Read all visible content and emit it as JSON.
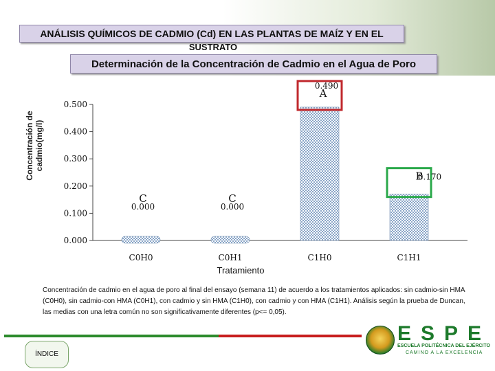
{
  "header": {
    "title_line1": "ANÁLISIS QUÍMICOS DE CADMIO (Cd) EN LAS PLANTAS DE MAÍZ Y EN EL",
    "title_line2": "SUSTRATO"
  },
  "chart_data": {
    "type": "bar",
    "title": "Determinación de la Concentración de Cadmio en el Agua de Poro",
    "xlabel": "Tratamiento",
    "ylabel": "Concentración de cadmio(mg/l)",
    "categories": [
      "C0H0",
      "C0H1",
      "C1H0",
      "C1H1"
    ],
    "values": [
      0.0,
      0.0,
      0.49,
      0.17
    ],
    "value_labels": [
      "0.000",
      "0.000",
      "0.490",
      "0.170"
    ],
    "letters": [
      "C",
      "C",
      "A",
      "B"
    ],
    "yticks": [
      "0.000",
      "0.100",
      "0.200",
      "0.300",
      "0.400",
      "0.500"
    ],
    "ylim": [
      0,
      0.5
    ],
    "highlight_colors": [
      "",
      "",
      "#c0282d",
      "#2aa84a"
    ],
    "bar_color": "#8aa6c8"
  },
  "caption": "Concentración de cadmio en el agua de poro al final del ensayo (semana 11) de acuerdo a los tratamientos aplicados: sin cadmio-sin HMA (C0H0), sin cadmio-con HMA (C0H1), con cadmio y sin HMA (C1H0), con cadmio y con HMA (C1H1). Análisis según la prueba de Duncan, las medias con una letra común no son significativamente diferentes (p<= 0,05).",
  "footer": {
    "index_label": "ÍNDICE",
    "logo_name": "ESPE",
    "logo_line1": "ESCUELA POLITÉCNICA DEL EJÉRCITO",
    "logo_line2": "CAMINO A LA EXCELENCIA",
    "logo_icon": "espe-seal-icon"
  }
}
